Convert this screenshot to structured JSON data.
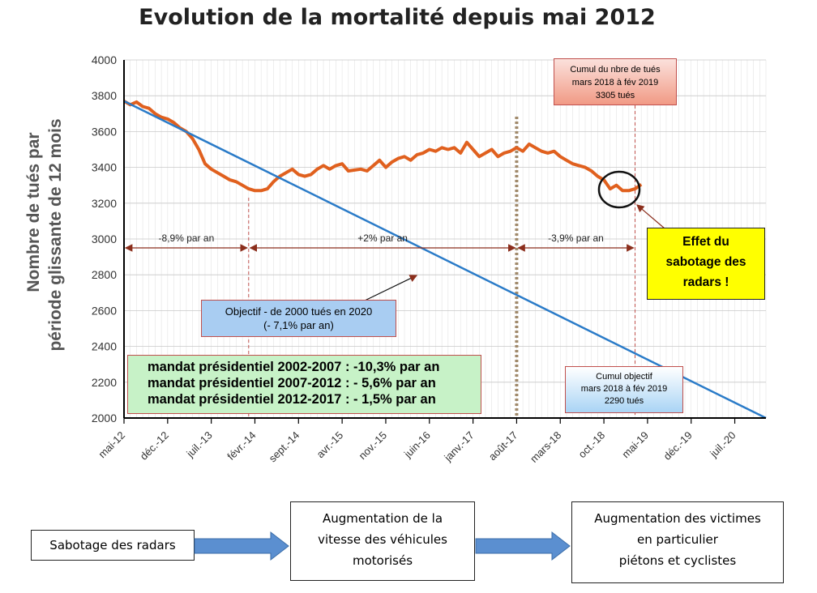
{
  "page": {
    "title": "Evolution de la mortalité depuis mai 2012"
  },
  "chart_data": {
    "type": "line",
    "ylabel_line1": "Nombre de tués par",
    "ylabel_line2": "période  glissante de 12 mois",
    "ylim": [
      2000,
      4000
    ],
    "y_ticks": [
      "2000",
      "2200",
      "2400",
      "2600",
      "2800",
      "3000",
      "3200",
      "3400",
      "3600",
      "3800",
      "4000"
    ],
    "x_range": [
      "2012-05",
      "2020-12"
    ],
    "x_ticks": [
      {
        "label": "mai-12",
        "date": "2012-05"
      },
      {
        "label": "déc.-12",
        "date": "2012-12"
      },
      {
        "label": "juil.-13",
        "date": "2013-07"
      },
      {
        "label": "févr.-14",
        "date": "2014-02"
      },
      {
        "label": "sept.-14",
        "date": "2014-09"
      },
      {
        "label": "avr.-15",
        "date": "2015-04"
      },
      {
        "label": "nov.-15",
        "date": "2015-11"
      },
      {
        "label": "juin-16",
        "date": "2016-06"
      },
      {
        "label": "janv.-17",
        "date": "2017-01"
      },
      {
        "label": "août-17",
        "date": "2017-08"
      },
      {
        "label": "mars-18",
        "date": "2018-03"
      },
      {
        "label": "oct.-18",
        "date": "2018-10"
      },
      {
        "label": "mai-19",
        "date": "2019-05"
      },
      {
        "label": "déc.-19",
        "date": "2019-12"
      },
      {
        "label": "juil.-20",
        "date": "2020-07"
      }
    ],
    "grid": true,
    "series": [
      {
        "color": "#e0601e",
        "points": [
          [
            "2012-05",
            3770
          ],
          [
            "2012-06",
            3750
          ],
          [
            "2012-07",
            3765
          ],
          [
            "2012-08",
            3740
          ],
          [
            "2012-09",
            3730
          ],
          [
            "2012-10",
            3700
          ],
          [
            "2012-11",
            3680
          ],
          [
            "2012-12",
            3670
          ],
          [
            "2013-01",
            3650
          ],
          [
            "2013-02",
            3620
          ],
          [
            "2013-03",
            3600
          ],
          [
            "2013-04",
            3560
          ],
          [
            "2013-05",
            3500
          ],
          [
            "2013-06",
            3420
          ],
          [
            "2013-07",
            3390
          ],
          [
            "2013-08",
            3370
          ],
          [
            "2013-09",
            3350
          ],
          [
            "2013-10",
            3330
          ],
          [
            "2013-11",
            3320
          ],
          [
            "2013-12",
            3300
          ],
          [
            "2014-01",
            3280
          ],
          [
            "2014-02",
            3270
          ],
          [
            "2014-03",
            3270
          ],
          [
            "2014-04",
            3280
          ],
          [
            "2014-05",
            3320
          ],
          [
            "2014-06",
            3350
          ],
          [
            "2014-07",
            3370
          ],
          [
            "2014-08",
            3390
          ],
          [
            "2014-09",
            3360
          ],
          [
            "2014-10",
            3350
          ],
          [
            "2014-11",
            3360
          ],
          [
            "2014-12",
            3390
          ],
          [
            "2015-01",
            3410
          ],
          [
            "2015-02",
            3390
          ],
          [
            "2015-03",
            3410
          ],
          [
            "2015-04",
            3420
          ],
          [
            "2015-05",
            3380
          ],
          [
            "2015-06",
            3385
          ],
          [
            "2015-07",
            3390
          ],
          [
            "2015-08",
            3380
          ],
          [
            "2015-09",
            3410
          ],
          [
            "2015-10",
            3440
          ],
          [
            "2015-11",
            3400
          ],
          [
            "2015-12",
            3430
          ],
          [
            "2016-01",
            3450
          ],
          [
            "2016-02",
            3460
          ],
          [
            "2016-03",
            3440
          ],
          [
            "2016-04",
            3470
          ],
          [
            "2016-05",
            3480
          ],
          [
            "2016-06",
            3500
          ],
          [
            "2016-07",
            3490
          ],
          [
            "2016-08",
            3510
          ],
          [
            "2016-09",
            3500
          ],
          [
            "2016-10",
            3510
          ],
          [
            "2016-11",
            3480
          ],
          [
            "2016-12",
            3540
          ],
          [
            "2017-01",
            3500
          ],
          [
            "2017-02",
            3460
          ],
          [
            "2017-03",
            3480
          ],
          [
            "2017-04",
            3500
          ],
          [
            "2017-05",
            3460
          ],
          [
            "2017-06",
            3480
          ],
          [
            "2017-07",
            3490
          ],
          [
            "2017-08",
            3510
          ],
          [
            "2017-09",
            3490
          ],
          [
            "2017-10",
            3530
          ],
          [
            "2017-11",
            3510
          ],
          [
            "2017-12",
            3490
          ],
          [
            "2018-01",
            3480
          ],
          [
            "2018-02",
            3490
          ],
          [
            "2018-03",
            3460
          ],
          [
            "2018-04",
            3440
          ],
          [
            "2018-05",
            3420
          ],
          [
            "2018-06",
            3410
          ],
          [
            "2018-07",
            3400
          ],
          [
            "2018-08",
            3380
          ],
          [
            "2018-09",
            3350
          ],
          [
            "2018-10",
            3330
          ],
          [
            "2018-11",
            3280
          ],
          [
            "2018-12",
            3300
          ],
          [
            "2019-01",
            3270
          ],
          [
            "2019-02",
            3270
          ],
          [
            "2019-03",
            3280
          ],
          [
            "2019-04",
            3305
          ]
        ]
      },
      {
        "color": "#2a7bc8",
        "points": [
          [
            "2012-05",
            3770
          ],
          [
            "2020-12",
            2000
          ]
        ]
      }
    ],
    "vertical_markers": [
      {
        "date": "2017-08",
        "style": "dotted-thick",
        "color": "#a0896a"
      },
      {
        "date": "2014-01",
        "style": "dashed",
        "color": "#c0504d"
      },
      {
        "date": "2019-03",
        "style": "dashed",
        "color": "#c0504d"
      }
    ],
    "rate_spans": [
      {
        "from": "2012-05",
        "to": "2014-01",
        "label": "-8,9% par an"
      },
      {
        "from": "2014-01",
        "to": "2017-08",
        "label": "+2% par an"
      },
      {
        "from": "2017-08",
        "to": "2019-03",
        "label": "-3,9% par an"
      }
    ],
    "annotations": {
      "objective": [
        "Objectif - de 2000 tués en 2020",
        "(- 7,1% par an)"
      ],
      "mandates": [
        "mandat présidentiel 2002-2007 : -10,3% par an",
        "mandat présidentiel 2007-2012 : - 5,6% par an",
        "mandat présidentiel 2012-2017 : - 1,5% par an"
      ],
      "cumul_actual": [
        "Cumul du nbre de tués",
        "mars 2018 à fév 2019",
        "3305 tués"
      ],
      "cumul_objective": [
        "Cumul objectif",
        "mars 2018 à fév 2019",
        "2290 tués"
      ],
      "effect": [
        "Effet du",
        "sabotage des",
        "radars !"
      ]
    }
  },
  "flow": {
    "step1": "Sabotage des radars",
    "step2": [
      "Augmentation de la",
      "vitesse des véhicules",
      "motorisés"
    ],
    "step3": [
      "Augmentation des victimes",
      "en particulier",
      "piétons et cyclistes"
    ],
    "arrow_color": "#5b8fd0"
  }
}
